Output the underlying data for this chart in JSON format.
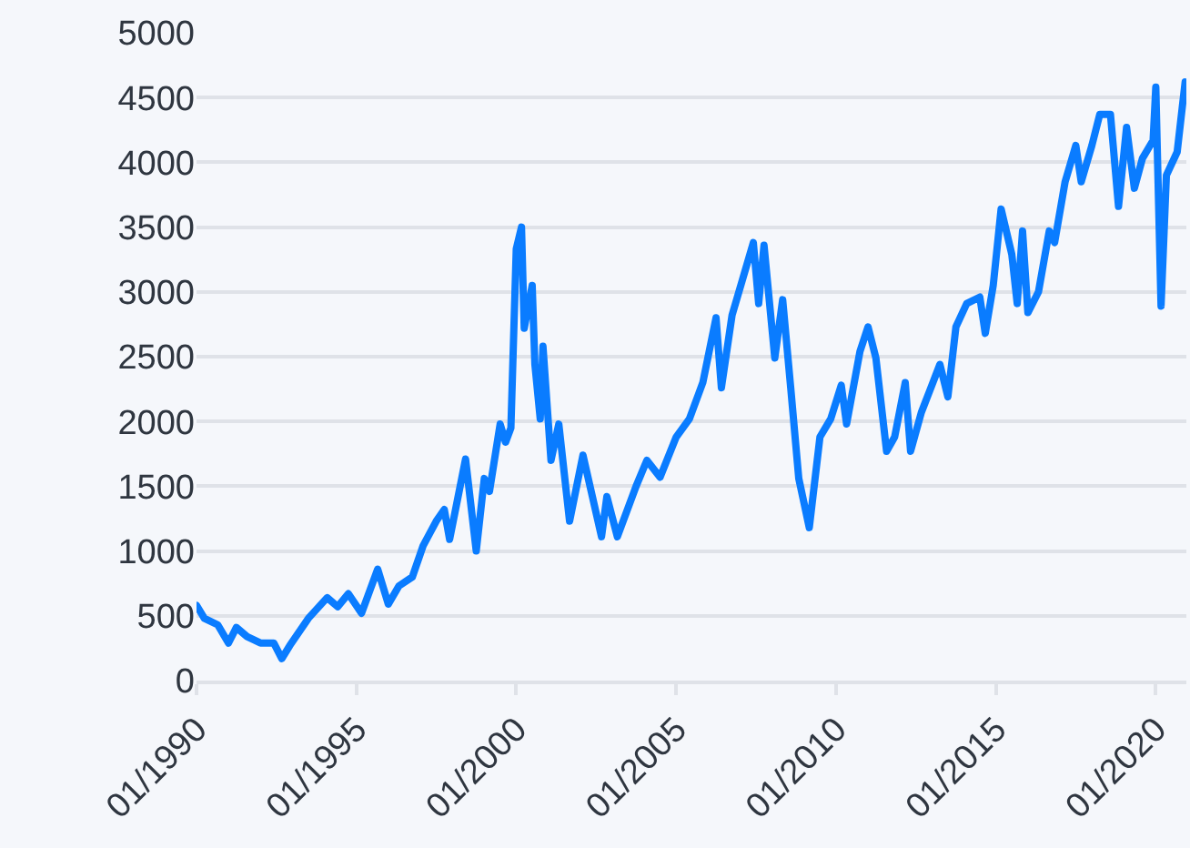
{
  "chart_data": {
    "type": "line",
    "x": [
      "1990-01",
      "1990-04",
      "1990-09",
      "1991-01",
      "1991-04",
      "1991-08",
      "1992-01",
      "1992-06",
      "1992-09",
      "1992-12",
      "1993-07",
      "1994-02",
      "1994-06",
      "1994-10",
      "1995-03",
      "1995-09",
      "1996-01",
      "1996-05",
      "1996-10",
      "1997-02",
      "1997-07",
      "1997-10",
      "1997-12",
      "1998-06",
      "1998-10",
      "1999-01",
      "1999-03",
      "1999-07",
      "1999-09",
      "1999-11",
      "2000-01",
      "2000-03",
      "2000-04",
      "2000-07",
      "2000-08",
      "2000-10",
      "2000-11",
      "2001-02",
      "2001-05",
      "2001-09",
      "2002-02",
      "2002-09",
      "2002-11",
      "2003-03",
      "2003-10",
      "2004-02",
      "2004-07",
      "2005-01",
      "2005-06",
      "2005-11",
      "2006-04",
      "2006-06",
      "2006-10",
      "2007-06",
      "2007-08",
      "2007-10",
      "2008-02",
      "2008-05",
      "2008-08",
      "2008-11",
      "2009-03",
      "2009-07",
      "2009-11",
      "2010-03",
      "2010-05",
      "2010-10",
      "2011-01",
      "2011-04",
      "2011-08",
      "2011-11",
      "2012-03",
      "2012-05",
      "2012-09",
      "2013-04",
      "2013-07",
      "2013-10",
      "2014-02",
      "2014-07",
      "2014-09",
      "2014-12",
      "2015-03",
      "2015-07",
      "2015-09",
      "2015-11",
      "2016-01",
      "2016-05",
      "2016-09",
      "2016-11",
      "2017-03",
      "2017-07",
      "2017-09",
      "2018-01",
      "2018-04",
      "2018-08",
      "2018-11",
      "2019-02",
      "2019-05",
      "2019-08",
      "2019-12",
      "2020-01",
      "2020-03",
      "2020-05",
      "2020-09",
      "2020-12"
    ],
    "series": [
      {
        "color": "#0a7cff",
        "values": [
          580,
          480,
          430,
          290,
          410,
          340,
          290,
          290,
          170,
          270,
          480,
          640,
          570,
          670,
          520,
          860,
          590,
          730,
          800,
          1040,
          1230,
          1320,
          1090,
          1710,
          1000,
          1560,
          1460,
          1980,
          1840,
          1950,
          3330,
          3500,
          2720,
          3050,
          2440,
          2020,
          2580,
          1700,
          1980,
          1230,
          1740,
          1110,
          1420,
          1110,
          1500,
          1700,
          1570,
          1880,
          2020,
          2300,
          2800,
          2260,
          2820,
          3380,
          2910,
          3360,
          2490,
          2940,
          2260,
          1560,
          1180,
          1880,
          2020,
          2280,
          1980,
          2540,
          2730,
          2490,
          1770,
          1880,
          2300,
          1770,
          2070,
          2440,
          2190,
          2730,
          2910,
          2960,
          2680,
          3050,
          3640,
          3290,
          2910,
          3470,
          2840,
          3000,
          3470,
          3380,
          3850,
          4130,
          3850,
          4130,
          4370,
          4370,
          3660,
          4270,
          3800,
          4030,
          4170,
          4580,
          2890,
          3900,
          4080,
          4620
        ]
      }
    ],
    "xlim": [
      "1990-01-01",
      "2020-12-15"
    ],
    "xticks": [
      {
        "value": "1990-01-01",
        "label": "01/1990"
      },
      {
        "value": "1995-01-01",
        "label": "01/1995"
      },
      {
        "value": "2000-01-01",
        "label": "01/2000"
      },
      {
        "value": "2005-01-01",
        "label": "01/2005"
      },
      {
        "value": "2010-01-01",
        "label": "01/2010"
      },
      {
        "value": "2015-01-01",
        "label": "01/2015"
      },
      {
        "value": "2020-01-01",
        "label": "01/2020"
      }
    ],
    "ylim": [
      0,
      5000
    ],
    "yticks": [
      0,
      500,
      1000,
      1500,
      2000,
      2500,
      3000,
      3500,
      4000,
      4500,
      5000
    ],
    "grid": "y",
    "marker": "none",
    "line_style": "solid"
  }
}
